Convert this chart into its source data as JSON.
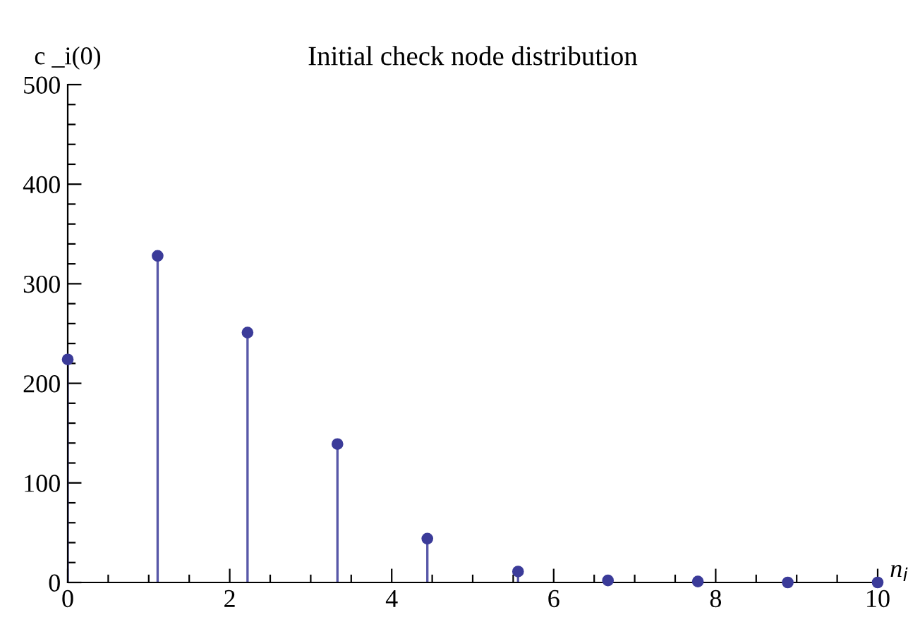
{
  "chart_data": {
    "type": "lollipop",
    "title": "Initial check node distribution",
    "xlabel": "n$_{i}$",
    "ylabel": "c _i(0)",
    "x": [
      0,
      1.11,
      2.22,
      3.33,
      4.44,
      5.56,
      6.67,
      7.78,
      8.89,
      10
    ],
    "values": [
      224,
      328,
      251,
      139,
      44,
      11,
      2,
      1,
      0,
      0
    ],
    "color": "#3b3b99",
    "marker": "circle",
    "grid": false,
    "legend": false,
    "xlim": [
      0,
      10
    ],
    "ylim": [
      0,
      500
    ],
    "xticks": [
      0,
      {
        "value": 0.5,
        "label": null
      },
      {
        "value": 1,
        "label": null
      },
      {
        "value": 1.5,
        "label": null
      },
      2,
      {
        "value": 2.5,
        "label": null
      },
      {
        "value": 3,
        "label": null
      },
      {
        "value": 3.5,
        "label": null
      },
      4,
      {
        "value": 4.5,
        "label": null
      },
      {
        "value": 5,
        "label": null
      },
      {
        "value": 5.5,
        "label": null
      },
      6,
      {
        "value": 6.5,
        "label": null
      },
      {
        "value": 7,
        "label": null
      },
      {
        "value": 7.5,
        "label": null
      },
      8,
      {
        "value": 8.5,
        "label": null
      },
      {
        "value": 9,
        "label": null
      },
      {
        "value": 9.5,
        "label": null
      },
      10
    ],
    "yticks": [
      0,
      {
        "value": 20,
        "label": null
      },
      {
        "value": 40,
        "label": null
      },
      {
        "value": 60,
        "label": null
      },
      {
        "value": 80,
        "label": null
      },
      100,
      {
        "value": 120,
        "label": null
      },
      {
        "value": 140,
        "label": null
      },
      {
        "value": 160,
        "label": null
      },
      {
        "value": 180,
        "label": null
      },
      200,
      {
        "value": 220,
        "label": null
      },
      {
        "value": 240,
        "label": null
      },
      {
        "value": 260,
        "label": null
      },
      {
        "value": 280,
        "label": null
      },
      300,
      {
        "value": 320,
        "label": null
      },
      {
        "value": 340,
        "label": null
      },
      {
        "value": 360,
        "label": null
      },
      {
        "value": 380,
        "label": null
      },
      400,
      {
        "value": 420,
        "label": null
      },
      {
        "value": 440,
        "label": null
      },
      {
        "value": 460,
        "label": null
      },
      {
        "value": 480,
        "label": null
      },
      500
    ]
  }
}
